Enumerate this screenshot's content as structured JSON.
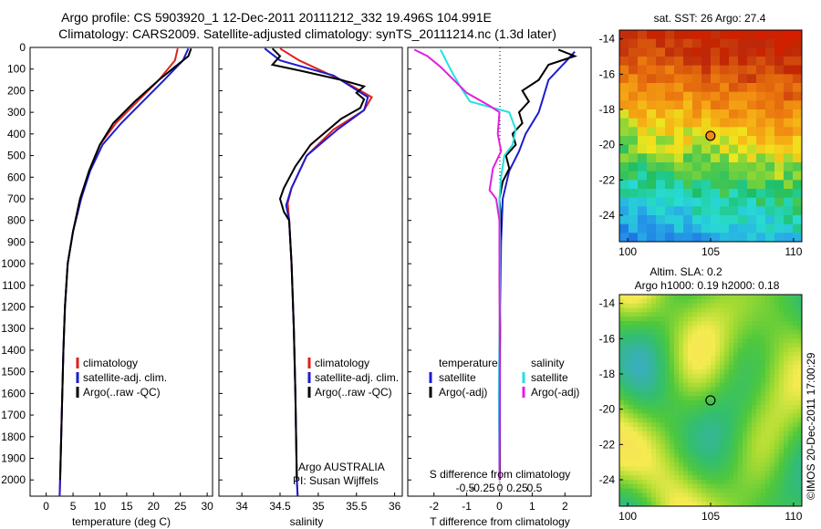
{
  "header": {
    "title_line1": "Argo profile: CS 5903920_1 12-Dec-2011 20111212_332 19.496S 104.991E",
    "title_line2": "Climatology: CARS2009. Satellite-adjusted climatology: synTS_20111214.nc (1.3d later)"
  },
  "colors": {
    "climatology": "#e0201c",
    "satellite": "#1c1cd0",
    "argo": "#000000",
    "sal_satellite": "#22e0e0",
    "sal_argo": "#e020e0"
  },
  "chart_data": [
    {
      "type": "line",
      "id": "temperature",
      "xlabel": "temperature (deg C)",
      "ylabel": "",
      "xlim": [
        -3,
        31
      ],
      "ylim": [
        2075,
        0
      ],
      "xticks": [
        "0",
        "5",
        "10",
        "15",
        "20",
        "25",
        "30"
      ],
      "yticks": [
        "0",
        "100",
        "200",
        "300",
        "400",
        "500",
        "600",
        "700",
        "800",
        "900",
        "1000",
        "1100",
        "1200",
        "1300",
        "1400",
        "1500",
        "1600",
        "1700",
        "1800",
        "1900",
        "2000"
      ],
      "legend": [
        "climatology",
        "satellite-adj. clim.",
        "Argo(..raw -QC)"
      ],
      "series": [
        {
          "name": "climatology",
          "points": [
            [
              24.5,
              5
            ],
            [
              24,
              60
            ],
            [
              21,
              150
            ],
            [
              17,
              250
            ],
            [
              13,
              350
            ],
            [
              10,
              450
            ],
            [
              8,
              570
            ],
            [
              6.5,
              700
            ],
            [
              5,
              850
            ],
            [
              4,
              1000
            ],
            [
              3.5,
              1200
            ],
            [
              3.2,
              1400
            ],
            [
              2.9,
              1700
            ],
            [
              2.6,
              2000
            ],
            [
              2.5,
              2075
            ]
          ]
        },
        {
          "name": "satellite-adj. clim.",
          "points": [
            [
              26.5,
              5
            ],
            [
              25.5,
              60
            ],
            [
              22,
              150
            ],
            [
              18,
              250
            ],
            [
              14,
              350
            ],
            [
              10.5,
              450
            ],
            [
              8.2,
              570
            ],
            [
              6.5,
              700
            ],
            [
              5,
              850
            ],
            [
              4,
              1000
            ],
            [
              3.5,
              1200
            ],
            [
              3.2,
              1400
            ],
            [
              2.9,
              1700
            ],
            [
              2.6,
              2000
            ],
            [
              2.5,
              2075
            ]
          ]
        },
        {
          "name": "Argo(..raw -QC)",
          "points": [
            [
              27,
              5
            ],
            [
              26.5,
              40
            ],
            [
              24,
              90
            ],
            [
              21,
              150
            ],
            [
              16.5,
              250
            ],
            [
              12.5,
              350
            ],
            [
              10,
              450
            ],
            [
              8,
              570
            ],
            [
              6.3,
              700
            ],
            [
              5,
              850
            ],
            [
              4,
              1000
            ],
            [
              3.5,
              1200
            ],
            [
              3.2,
              1400
            ],
            [
              2.9,
              1700
            ],
            [
              2.6,
              2000
            ]
          ]
        }
      ]
    },
    {
      "type": "line",
      "id": "salinity",
      "xlabel": "salinity",
      "xlim": [
        33.7,
        36.1
      ],
      "ylim": [
        2075,
        0
      ],
      "xticks": [
        "34",
        "34.5",
        "35",
        "35.5",
        "36"
      ],
      "legend": [
        "climatology",
        "satellite-adj. clim.",
        "Argo(..raw -QC)"
      ],
      "annotation": [
        "Argo AUSTRALIA",
        "PI: Susan Wijffels"
      ],
      "series": [
        {
          "name": "climatology",
          "points": [
            [
              34.5,
              5
            ],
            [
              34.75,
              60
            ],
            [
              35.3,
              150
            ],
            [
              35.7,
              230
            ],
            [
              35.6,
              290
            ],
            [
              35.2,
              380
            ],
            [
              34.85,
              500
            ],
            [
              34.65,
              650
            ],
            [
              34.6,
              720
            ],
            [
              34.62,
              800
            ],
            [
              34.65,
              1000
            ],
            [
              34.68,
              1300
            ],
            [
              34.7,
              1600
            ],
            [
              34.72,
              2000
            ],
            [
              34.73,
              2075
            ]
          ]
        },
        {
          "name": "satellite-adj. clim.",
          "points": [
            [
              34.3,
              5
            ],
            [
              34.5,
              60
            ],
            [
              35.2,
              130
            ],
            [
              35.65,
              230
            ],
            [
              35.6,
              290
            ],
            [
              35.25,
              380
            ],
            [
              34.85,
              500
            ],
            [
              34.65,
              650
            ],
            [
              34.58,
              730
            ],
            [
              34.62,
              800
            ],
            [
              34.65,
              1000
            ],
            [
              34.68,
              1300
            ],
            [
              34.7,
              1600
            ],
            [
              34.72,
              2000
            ],
            [
              34.73,
              2075
            ]
          ]
        },
        {
          "name": "Argo(..raw -QC)",
          "points": [
            [
              34.4,
              5
            ],
            [
              34.5,
              40
            ],
            [
              34.4,
              80
            ],
            [
              34.8,
              110
            ],
            [
              35.3,
              150
            ],
            [
              35.6,
              180
            ],
            [
              35.5,
              210
            ],
            [
              35.6,
              240
            ],
            [
              35.55,
              280
            ],
            [
              35.3,
              330
            ],
            [
              34.9,
              450
            ],
            [
              34.7,
              550
            ],
            [
              34.55,
              650
            ],
            [
              34.5,
              700
            ],
            [
              34.55,
              760
            ],
            [
              34.62,
              800
            ],
            [
              34.65,
              1000
            ],
            [
              34.68,
              1300
            ],
            [
              34.7,
              1600
            ],
            [
              34.72,
              2000
            ]
          ]
        }
      ]
    },
    {
      "type": "line",
      "id": "difference",
      "xlabel": "T difference from climatology",
      "xlabel_top": "S difference from climatology",
      "xlim": [
        -2.8,
        2.8
      ],
      "ylim": [
        2075,
        0
      ],
      "xticks_T": [
        "-2",
        "-1",
        "0",
        "1",
        "2"
      ],
      "xticks_S": [
        "-0.5",
        "-0.25",
        "0",
        "0.25",
        "0.5"
      ],
      "legend_temperature": {
        "title": "temperature",
        "items": [
          "satellite",
          "Argo(-adj)"
        ]
      },
      "legend_salinity": {
        "title": "salinity",
        "items": [
          "satellite",
          "Argo(-adj)"
        ]
      },
      "series": [
        {
          "name": "temperature satellite",
          "points": [
            [
              2.3,
              20
            ],
            [
              2,
              70
            ],
            [
              1.5,
              150
            ],
            [
              1.3,
              250
            ],
            [
              1.2,
              300
            ],
            [
              0.8,
              400
            ],
            [
              0.6,
              480
            ],
            [
              0.3,
              570
            ],
            [
              0.1,
              700
            ],
            [
              0.05,
              900
            ],
            [
              0.02,
              1200
            ],
            [
              0.01,
              2000
            ]
          ]
        },
        {
          "name": "temperature Argo(-adj)",
          "points": [
            [
              1.8,
              10
            ],
            [
              2.3,
              40
            ],
            [
              1.5,
              80
            ],
            [
              1.2,
              150
            ],
            [
              0.7,
              200
            ],
            [
              0.9,
              250
            ],
            [
              0.6,
              300
            ],
            [
              0.7,
              350
            ],
            [
              0.4,
              400
            ],
            [
              0.5,
              450
            ],
            [
              0.2,
              500
            ],
            [
              0.3,
              560
            ],
            [
              0.1,
              620
            ],
            [
              0,
              700
            ],
            [
              0.05,
              800
            ],
            [
              0,
              1000
            ],
            [
              0.02,
              1300
            ],
            [
              0,
              1600
            ],
            [
              0.01,
              2000
            ]
          ]
        },
        {
          "name": "salinity satellite",
          "points": [
            [
              -1.8,
              10
            ],
            [
              -1.5,
              100
            ],
            [
              -1.2,
              180
            ],
            [
              -0.9,
              250
            ],
            [
              0.3,
              300
            ],
            [
              0.5,
              380
            ],
            [
              0.4,
              450
            ],
            [
              0.15,
              500
            ],
            [
              0.05,
              600
            ],
            [
              0,
              700
            ],
            [
              0.02,
              900
            ],
            [
              0.01,
              1200
            ],
            [
              -0.02,
              1600
            ],
            [
              0,
              2000
            ]
          ]
        },
        {
          "name": "salinity Argo(-adj)",
          "points": [
            [
              -2.6,
              10
            ],
            [
              -2.2,
              40
            ],
            [
              -1.8,
              90
            ],
            [
              -1.4,
              150
            ],
            [
              -1,
              210
            ],
            [
              -0.3,
              270
            ],
            [
              0,
              300
            ],
            [
              -0.05,
              400
            ],
            [
              0.05,
              480
            ],
            [
              -0.2,
              560
            ],
            [
              -0.3,
              660
            ],
            [
              -0.1,
              700
            ],
            [
              0,
              800
            ],
            [
              0,
              1000
            ],
            [
              0.01,
              1500
            ],
            [
              0,
              2000
            ]
          ]
        }
      ]
    },
    {
      "type": "heatmap",
      "id": "sst",
      "title": "sat. SST: 26 Argo: 27.4",
      "xlim": [
        99.5,
        110.5
      ],
      "ylim": [
        -25.5,
        -13.5
      ],
      "xticks": [
        "100",
        "105",
        "110"
      ],
      "yticks": [
        "-14",
        "-16",
        "-18",
        "-20",
        "-22",
        "-24"
      ],
      "marker": [
        104.991,
        -19.496
      ]
    },
    {
      "type": "heatmap",
      "id": "sla",
      "title_line1": "Altim. SLA: 0.2",
      "title_line2": "Argo h1000: 0.19 h2000: 0.18",
      "xlim": [
        99.5,
        110.5
      ],
      "ylim": [
        -25.5,
        -13.5
      ],
      "xticks": [
        "100",
        "105",
        "110"
      ],
      "yticks": [
        "-14",
        "-16",
        "-18",
        "-20",
        "-22",
        "-24"
      ],
      "marker": [
        104.991,
        -19.496
      ]
    }
  ],
  "footer": {
    "credit": "©IMOS 20-Dec-2011 17:00:29"
  }
}
